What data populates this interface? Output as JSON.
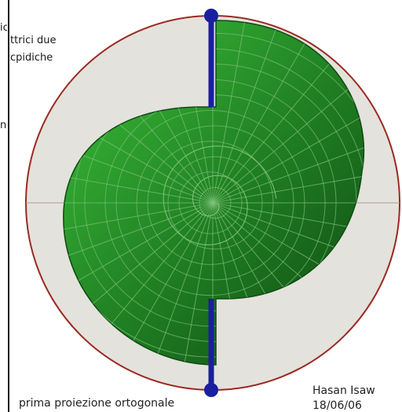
{
  "side_text": {
    "line1": "ica",
    "line2": "ttrici due",
    "line3": "cpidiche",
    "line4": "n"
  },
  "caption": "prima proiezione ortogonale",
  "author": {
    "name": "Hasan Isaw",
    "date": "18/06/06"
  },
  "colors": {
    "disk": "#e4e2dc",
    "circle": "#9a2a22",
    "axis": "#1a1fa0",
    "surface": "#2e9a2e",
    "surface_dark": "#0f4a12",
    "surface_light": "#3cc23a",
    "grid": "#7fc27a",
    "crosshair": "#b59a92"
  }
}
